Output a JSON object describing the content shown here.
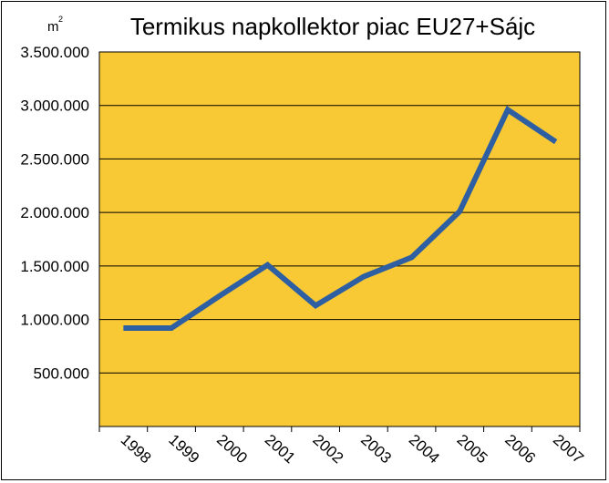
{
  "chart_data": {
    "type": "line",
    "title": "Termikus napkollektor piac EU27+Sájc",
    "ylabel": "m",
    "ylabel_superscript": "2",
    "xlabel": "",
    "categories": [
      "1998",
      "1999",
      "2000",
      "2001",
      "2002",
      "2003",
      "2004",
      "2005",
      "2006",
      "2007"
    ],
    "series": [
      {
        "values": [
          920000,
          920000,
          1220000,
          1510000,
          1130000,
          1400000,
          1580000,
          2010000,
          2960000,
          2660000
        ],
        "color": "#2e5fa3"
      }
    ],
    "ylim": [
      0,
      3500000
    ],
    "yticks": [
      500000,
      1000000,
      1500000,
      2000000,
      2500000,
      3000000,
      3500000
    ],
    "ytick_labels": [
      "500.000",
      "1.000.000",
      "1.500.000",
      "2.000.000",
      "2.500.000",
      "3.000.000",
      "3.500.000"
    ],
    "grid": true,
    "legend": "none",
    "plot_background": "#f9c935",
    "line_color": "#2e5fa3"
  }
}
